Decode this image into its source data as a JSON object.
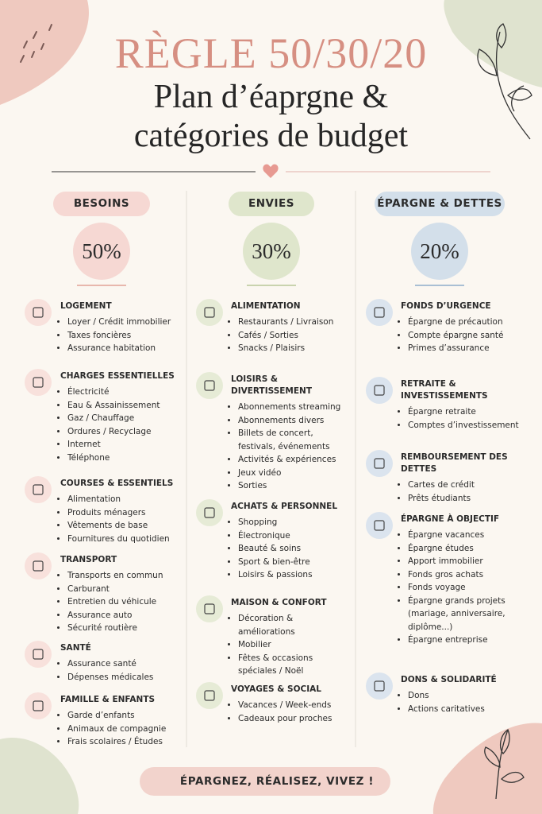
{
  "header": {
    "title": "RÈGLE 50/30/20",
    "subtitle_lines": [
      "Plan d’éaprgne &",
      "catégories de budget"
    ]
  },
  "columns": [
    {
      "label": "BESOINS",
      "percent": "50%",
      "sections": [
        {
          "title": "LOGEMENT",
          "items": [
            "Loyer / Crédit immobilier",
            "Taxes foncières",
            "Assurance habitation"
          ]
        },
        {
          "title": "CHARGES ESSENTIELLES",
          "items": [
            "Électricité",
            "Eau & Assainissement",
            "Gaz / Chauffage",
            "Ordures / Recyclage",
            "Internet",
            "Téléphone"
          ]
        },
        {
          "title": "COURSES & ESSENTIELS",
          "items": [
            "Alimentation",
            "Produits ménagers",
            "Vêtements de base",
            "Fournitures du quotidien"
          ]
        },
        {
          "title": "TRANSPORT",
          "items": [
            "Transports en commun",
            "Carburant",
            "Entretien du véhicule",
            "Assurance auto",
            "Sécurité routière"
          ]
        },
        {
          "title": "SANTÉ",
          "items": [
            "Assurance santé",
            "Dépenses médicales"
          ]
        },
        {
          "title": "FAMILLE & ENFANTS",
          "items": [
            "Garde d’enfants",
            "Animaux de compagnie",
            "Frais scolaires / Études"
          ]
        }
      ]
    },
    {
      "label": "ENVIES",
      "percent": "30%",
      "sections": [
        {
          "title": "ALIMENTATION",
          "items": [
            "Restaurants / Livraison",
            "Cafés / Sorties",
            "Snacks / Plaisirs"
          ]
        },
        {
          "title": "LOISIRS & DIVERTISSEMENT",
          "items": [
            "Abonnements streaming",
            "Abonnements divers",
            "Billets de concert, festivals, événements",
            "Activités & expériences",
            "Jeux vidéo",
            "Sorties"
          ]
        },
        {
          "title": "ACHATS & PERSONNEL",
          "items": [
            "Shopping",
            "Électronique",
            "Beauté & soins",
            "Sport & bien-être",
            "Loisirs & passions"
          ]
        },
        {
          "title": "MAISON & CONFORT",
          "items": [
            "Décoration & améliorations",
            "Mobilier",
            "Fêtes & occasions spéciales / Noël"
          ]
        },
        {
          "title": "VOYAGES & SOCIAL",
          "items": [
            "Vacances / Week-ends",
            "Cadeaux pour proches"
          ]
        }
      ]
    },
    {
      "label": "ÉPARGNE & DETTES",
      "percent": "20%",
      "sections": [
        {
          "title": "FONDS D’URGENCE",
          "items": [
            "Épargne de précaution",
            "Compte épargne santé",
            "Primes d’assurance"
          ]
        },
        {
          "title": "RETRAITE & INVESTISSEMENTS",
          "items": [
            "Épargne retraite",
            "Comptes d’investissement"
          ]
        },
        {
          "title": "REMBOURSEMENT DES DETTES",
          "items": [
            "Cartes de crédit",
            "Prêts étudiants"
          ]
        },
        {
          "title": "ÉPARGNE À OBJECTIF",
          "items": [
            "Épargne vacances",
            "Épargne études",
            "Apport immobilier",
            "Fonds gros achats",
            "Fonds voyage",
            "Épargne grands projets (mariage, anniversaire, diplôme...)",
            "Épargne entreprise"
          ]
        },
        {
          "title": "DONS & SOLIDARITÉ",
          "items": [
            "Dons",
            "Actions caritatives"
          ]
        }
      ]
    }
  ],
  "footer": "ÉPARGNEZ, RÉALISEZ, VIVEZ !"
}
